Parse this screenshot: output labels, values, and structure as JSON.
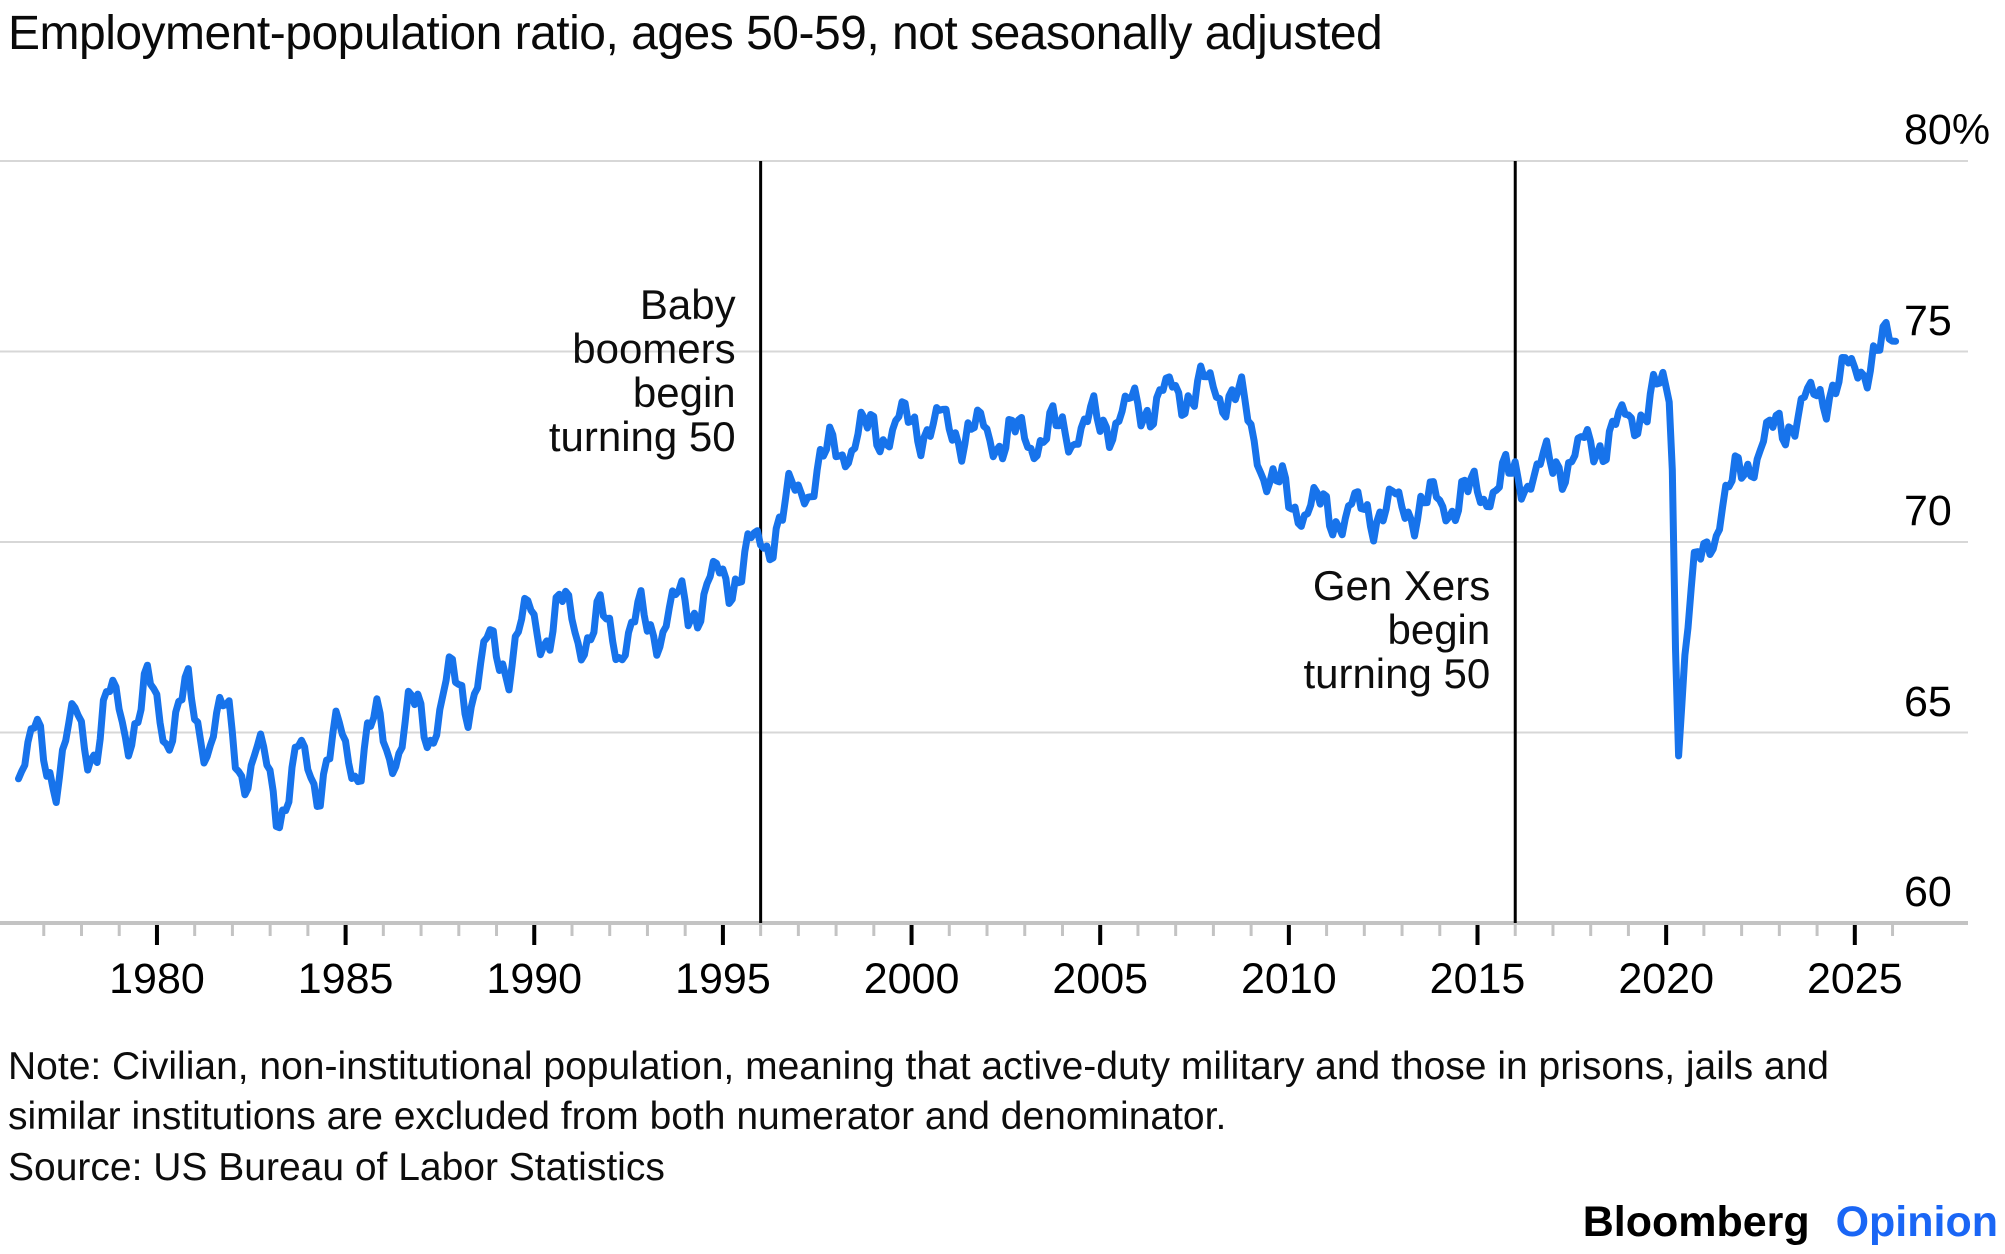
{
  "title": "Employment-population ratio, ages 50-59, not seasonally adjusted",
  "note_lines": [
    "Note: Civilian, non-institutional population, meaning that active-duty military and those in prisons, jails and",
    "similar institutions are excluded from both numerator and denominator."
  ],
  "source": "Source: US Bureau of Labor Statistics",
  "branding": {
    "name": "Bloomberg",
    "edition": "Opinion",
    "edition_color": "#1a66f5"
  },
  "chart_data": {
    "type": "line",
    "title": "Employment-population ratio, ages 50-59, not seasonally adjusted",
    "unit": "percent",
    "grid": "horizontal",
    "legend": "none",
    "line_color": "#1773eb",
    "x_axis": {
      "range_years": [
        1975.8,
        2028.1
      ],
      "major_ticks": [
        1980,
        1985,
        1990,
        1995,
        2000,
        2005,
        2010,
        2015,
        2020,
        2025
      ],
      "minor_tick_years": "every year 1977-2026",
      "tick_label_format": "year"
    },
    "y_axis": {
      "side": "right",
      "range": [
        60,
        80
      ],
      "ticks": [
        80,
        75,
        70,
        65,
        60
      ],
      "tick_labels": [
        "80%",
        "75",
        "70",
        "65",
        "60"
      ]
    },
    "events": [
      {
        "year": 1996,
        "label": "Baby boomers begin turning 50",
        "label_lines": [
          "Baby",
          "boomers",
          "begin",
          "turning 50"
        ]
      },
      {
        "year": 2016,
        "label": "Gen Xers begin turning 50",
        "label_lines": [
          "Gen Xers",
          "begin",
          "turning 50"
        ]
      }
    ],
    "series": [
      {
        "name": "Employment-population ratio, ages 50-59, not seasonally adjusted",
        "sampling": "monthly",
        "data_start_year": 1976.33,
        "data_end_year": 2026.08,
        "trend_points_year_value": [
          [
            1976.33,
            64.6
          ],
          [
            1976.7,
            64.3
          ],
          [
            1977,
            64.3
          ],
          [
            1977.5,
            64.5
          ],
          [
            1978,
            64.9
          ],
          [
            1978.5,
            65.2
          ],
          [
            1979,
            65.5
          ],
          [
            1979.5,
            65.6
          ],
          [
            1980,
            65.6
          ],
          [
            1980.5,
            65.5
          ],
          [
            1981,
            65.4
          ],
          [
            1981.5,
            65.2
          ],
          [
            1982,
            64.8
          ],
          [
            1982.5,
            64.2
          ],
          [
            1983,
            63.6
          ],
          [
            1983.3,
            63.5
          ],
          [
            1983.7,
            63.8
          ],
          [
            1984,
            64.0
          ],
          [
            1984.5,
            64.3
          ],
          [
            1985,
            64.5
          ],
          [
            1986,
            64.8
          ],
          [
            1986.5,
            65.0
          ],
          [
            1987,
            65.3
          ],
          [
            1987.5,
            65.7
          ],
          [
            1988,
            66.1
          ],
          [
            1988.5,
            66.5
          ],
          [
            1989,
            67.0
          ],
          [
            1989.5,
            67.4
          ],
          [
            1990,
            67.8
          ],
          [
            1990.5,
            68.0
          ],
          [
            1991,
            67.9
          ],
          [
            1991.5,
            67.7
          ],
          [
            1992,
            67.6
          ],
          [
            1992.5,
            67.6
          ],
          [
            1993,
            67.8
          ],
          [
            1993.5,
            68.0
          ],
          [
            1994,
            68.3
          ],
          [
            1994.5,
            68.6
          ],
          [
            1995,
            69.0
          ],
          [
            1995.5,
            69.4
          ],
          [
            1996,
            69.9
          ],
          [
            1996.5,
            70.6
          ],
          [
            1997,
            71.3
          ],
          [
            1997.5,
            71.9
          ],
          [
            1998,
            72.4
          ],
          [
            1998.5,
            72.7
          ],
          [
            1999,
            72.9
          ],
          [
            1999.5,
            73.0
          ],
          [
            2000,
            73.1
          ],
          [
            2001,
            73.0
          ],
          [
            2002,
            72.8
          ],
          [
            2003,
            72.7
          ],
          [
            2004,
            72.9
          ],
          [
            2005,
            73.1
          ],
          [
            2005.5,
            73.3
          ],
          [
            2006,
            73.5
          ],
          [
            2006.5,
            73.7
          ],
          [
            2007,
            73.9
          ],
          [
            2007.5,
            74.0
          ],
          [
            2008,
            74.0
          ],
          [
            2008.6,
            73.9
          ],
          [
            2009,
            72.9
          ],
          [
            2009.5,
            71.6
          ],
          [
            2010,
            71.1
          ],
          [
            2010.5,
            70.9
          ],
          [
            2011,
            70.8
          ],
          [
            2011.5,
            70.7
          ],
          [
            2012,
            70.8
          ],
          [
            2013,
            70.9
          ],
          [
            2014,
            71.0
          ],
          [
            2014.5,
            71.1
          ],
          [
            2015,
            71.3
          ],
          [
            2015.5,
            71.5
          ],
          [
            2016,
            71.7
          ],
          [
            2016.5,
            71.8
          ],
          [
            2017,
            72.0
          ],
          [
            2017.5,
            72.2
          ],
          [
            2018,
            72.5
          ],
          [
            2018.5,
            72.8
          ],
          [
            2019,
            73.2
          ],
          [
            2019.5,
            73.6
          ],
          [
            2019.92,
            74.0
          ],
          [
            2020.08,
            73.9
          ],
          [
            2020.17,
            72.0
          ],
          [
            2020.25,
            67.5
          ],
          [
            2020.33,
            65.0
          ],
          [
            2020.42,
            65.9
          ],
          [
            2020.5,
            67.0
          ],
          [
            2020.58,
            67.9
          ],
          [
            2020.67,
            68.6
          ],
          [
            2020.83,
            69.3
          ],
          [
            2021,
            69.8
          ],
          [
            2021.25,
            70.3
          ],
          [
            2021.5,
            71.0
          ],
          [
            2021.75,
            71.4
          ],
          [
            2022,
            71.9
          ],
          [
            2022.5,
            72.5
          ],
          [
            2023,
            73.0
          ],
          [
            2023.5,
            73.4
          ],
          [
            2024,
            73.8
          ],
          [
            2024.5,
            74.2
          ],
          [
            2025,
            74.5
          ],
          [
            2025.5,
            74.9
          ],
          [
            2026.08,
            75.3
          ]
        ],
        "seasonal_wiggle": {
          "note": "not seasonally adjusted - monthly oscillation around trend",
          "amplitude_by_year": [
            [
              1976,
              1.0
            ],
            [
              1988,
              0.9
            ],
            [
              1994,
              0.65
            ],
            [
              1999,
              0.5
            ],
            [
              2026,
              0.45
            ]
          ],
          "jitter": [
            [
              0.22,
              52.9,
              0
            ],
            [
              0.13,
              17.3,
              2
            ]
          ]
        },
        "key_points_year_value": [
          [
            1976.4,
            64.5
          ],
          [
            1980,
            65.6
          ],
          [
            1983.1,
            62.8
          ],
          [
            1990,
            68.0
          ],
          [
            1996,
            70.0
          ],
          [
            2000,
            73.1
          ],
          [
            2007.8,
            74.3
          ],
          [
            2012,
            70.8
          ],
          [
            2016,
            71.7
          ],
          [
            2020.1,
            74.2
          ],
          [
            2020.33,
            64.6
          ],
          [
            2026.05,
            75.3
          ]
        ]
      }
    ]
  }
}
